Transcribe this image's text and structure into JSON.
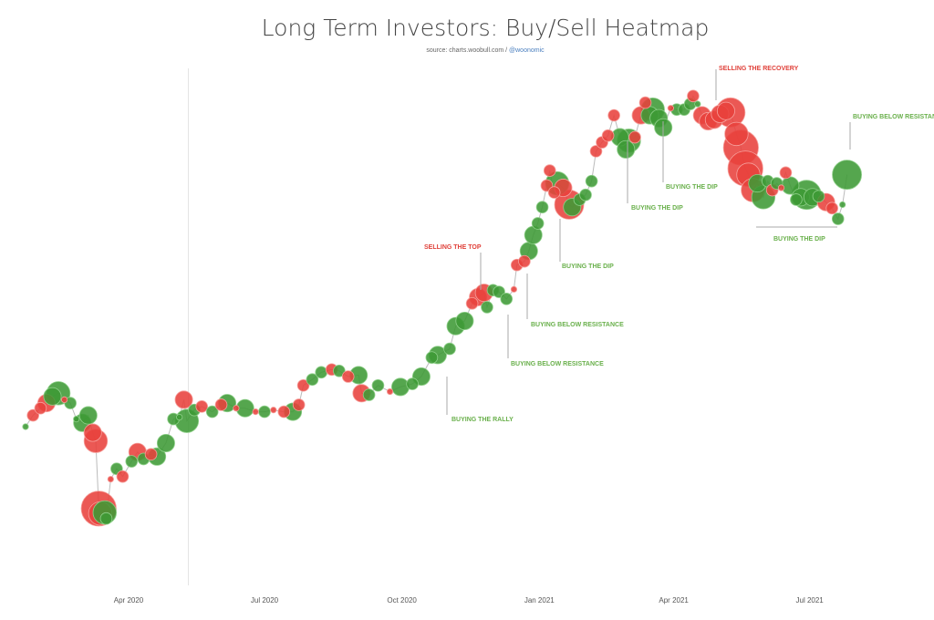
{
  "chart_data": {
    "type": "scatter",
    "title": "Long Term Investors: Buy/Sell Heatmap",
    "subtitle_source": "source: charts.woobull.com /",
    "subtitle_handle": "@woonomic",
    "xlabel": "",
    "ylabel": "",
    "y_axis_visible": false,
    "y_scale": "log",
    "x_ticks": [
      {
        "date": "2020-04-01",
        "label": "Apr 2020"
      },
      {
        "date": "2020-07-01",
        "label": "Jul 2020"
      },
      {
        "date": "2020-10-01",
        "label": "Oct 2020"
      },
      {
        "date": "2021-01-01",
        "label": "Jan 2021"
      },
      {
        "date": "2021-04-01",
        "label": "Apr 2021"
      },
      {
        "date": "2021-07-01",
        "label": "Jul 2021"
      }
    ],
    "xlim": [
      "2020-01-20",
      "2021-08-02"
    ],
    "legend": {
      "buy_color": "#3d9a35",
      "sell_color": "#e8413c"
    },
    "marker_line_date": "2020-05-11",
    "points_format": [
      "date",
      "approx_price_usd",
      "side",
      "bubble_size"
    ],
    "points": [
      [
        "2020-01-23",
        8400,
        "b",
        1
      ],
      [
        "2020-01-28",
        9000,
        "s",
        2
      ],
      [
        "2020-02-02",
        9400,
        "s",
        2
      ],
      [
        "2020-02-06",
        9700,
        "s",
        3
      ],
      [
        "2020-02-10",
        10100,
        "b",
        3
      ],
      [
        "2020-02-14",
        10300,
        "b",
        4
      ],
      [
        "2020-02-18",
        9900,
        "s",
        1
      ],
      [
        "2020-02-22",
        9700,
        "b",
        2
      ],
      [
        "2020-02-26",
        8800,
        "b",
        1
      ],
      [
        "2020-03-01",
        8600,
        "b",
        3
      ],
      [
        "2020-03-05",
        9000,
        "b",
        3
      ],
      [
        "2020-03-08",
        8100,
        "s",
        3
      ],
      [
        "2020-03-10",
        7700,
        "s",
        4
      ],
      [
        "2020-03-12",
        5100,
        "s",
        6
      ],
      [
        "2020-03-13",
        4950,
        "s",
        4
      ],
      [
        "2020-03-16",
        4980,
        "b",
        4
      ],
      [
        "2020-03-17",
        4800,
        "b",
        2
      ],
      [
        "2020-03-20",
        6100,
        "s",
        1
      ],
      [
        "2020-03-24",
        6500,
        "b",
        2
      ],
      [
        "2020-03-28",
        6200,
        "s",
        2
      ],
      [
        "2020-04-03",
        6800,
        "b",
        2
      ],
      [
        "2020-04-07",
        7200,
        "s",
        3
      ],
      [
        "2020-04-11",
        6900,
        "b",
        2
      ],
      [
        "2020-04-16",
        7100,
        "s",
        2
      ],
      [
        "2020-04-20",
        7000,
        "b",
        3
      ],
      [
        "2020-04-26",
        7600,
        "b",
        3
      ],
      [
        "2020-05-01",
        8800,
        "b",
        2
      ],
      [
        "2020-05-05",
        8900,
        "b",
        1
      ],
      [
        "2020-05-08",
        9900,
        "s",
        3
      ],
      [
        "2020-05-10",
        8700,
        "b",
        4
      ],
      [
        "2020-05-15",
        9300,
        "b",
        2
      ],
      [
        "2020-05-20",
        9500,
        "s",
        2
      ],
      [
        "2020-05-27",
        9200,
        "b",
        2
      ],
      [
        "2020-06-02",
        9600,
        "s",
        2
      ],
      [
        "2020-06-06",
        9700,
        "b",
        3
      ],
      [
        "2020-06-12",
        9400,
        "s",
        1
      ],
      [
        "2020-06-18",
        9400,
        "b",
        3
      ],
      [
        "2020-06-25",
        9200,
        "s",
        1
      ],
      [
        "2020-07-01",
        9200,
        "b",
        2
      ],
      [
        "2020-07-07",
        9300,
        "s",
        1
      ],
      [
        "2020-07-14",
        9200,
        "s",
        2
      ],
      [
        "2020-07-20",
        9200,
        "b",
        3
      ],
      [
        "2020-07-24",
        9600,
        "s",
        2
      ],
      [
        "2020-07-27",
        10800,
        "s",
        2
      ],
      [
        "2020-08-02",
        11200,
        "b",
        2
      ],
      [
        "2020-08-08",
        11700,
        "b",
        2
      ],
      [
        "2020-08-15",
        11900,
        "s",
        2
      ],
      [
        "2020-08-20",
        11800,
        "b",
        2
      ],
      [
        "2020-08-26",
        11400,
        "s",
        2
      ],
      [
        "2020-09-02",
        11500,
        "b",
        3
      ],
      [
        "2020-09-04",
        10300,
        "s",
        3
      ],
      [
        "2020-09-09",
        10200,
        "b",
        2
      ],
      [
        "2020-09-15",
        10800,
        "b",
        2
      ],
      [
        "2020-09-23",
        10400,
        "s",
        1
      ],
      [
        "2020-09-30",
        10700,
        "b",
        3
      ],
      [
        "2020-10-08",
        10900,
        "b",
        2
      ],
      [
        "2020-10-14",
        11400,
        "b",
        3
      ],
      [
        "2020-10-21",
        12800,
        "b",
        2
      ],
      [
        "2020-10-25",
        13000,
        "b",
        3
      ],
      [
        "2020-11-02",
        13500,
        "b",
        2
      ],
      [
        "2020-11-06",
        15500,
        "b",
        3
      ],
      [
        "2020-11-12",
        16000,
        "b",
        3
      ],
      [
        "2020-11-17",
        17800,
        "s",
        2
      ],
      [
        "2020-11-21",
        18500,
        "s",
        3
      ],
      [
        "2020-11-25",
        19000,
        "s",
        3
      ],
      [
        "2020-11-27",
        17400,
        "b",
        2
      ],
      [
        "2020-12-01",
        19300,
        "b",
        2
      ],
      [
        "2020-12-05",
        19100,
        "b",
        2
      ],
      [
        "2020-12-10",
        18300,
        "b",
        2
      ],
      [
        "2020-12-15",
        19400,
        "s",
        1
      ],
      [
        "2020-12-17",
        22500,
        "s",
        2
      ],
      [
        "2020-12-22",
        23000,
        "s",
        2
      ],
      [
        "2020-12-25",
        24500,
        "b",
        3
      ],
      [
        "2020-12-28",
        27000,
        "b",
        3
      ],
      [
        "2020-12-31",
        29000,
        "b",
        2
      ],
      [
        "2021-01-03",
        32000,
        "b",
        2
      ],
      [
        "2021-01-06",
        36500,
        "s",
        2
      ],
      [
        "2021-01-08",
        40000,
        "s",
        2
      ],
      [
        "2021-01-11",
        35000,
        "s",
        2
      ],
      [
        "2021-01-13",
        37000,
        "b",
        4
      ],
      [
        "2021-01-17",
        36000,
        "s",
        3
      ],
      [
        "2021-01-21",
        32500,
        "s",
        5
      ],
      [
        "2021-01-23",
        32000,
        "b",
        3
      ],
      [
        "2021-01-28",
        33500,
        "b",
        2
      ],
      [
        "2021-02-01",
        34500,
        "b",
        2
      ],
      [
        "2021-02-05",
        37500,
        "b",
        2
      ],
      [
        "2021-02-08",
        45000,
        "s",
        2
      ],
      [
        "2021-02-12",
        47500,
        "s",
        2
      ],
      [
        "2021-02-16",
        49500,
        "s",
        2
      ],
      [
        "2021-02-20",
        56000,
        "s",
        2
      ],
      [
        "2021-02-24",
        49000,
        "b",
        3
      ],
      [
        "2021-02-28",
        45500,
        "b",
        3
      ],
      [
        "2021-03-02",
        48000,
        "b",
        4
      ],
      [
        "2021-03-06",
        49000,
        "s",
        2
      ],
      [
        "2021-03-10",
        56000,
        "s",
        3
      ],
      [
        "2021-03-13",
        60500,
        "s",
        2
      ],
      [
        "2021-03-16",
        56000,
        "b",
        3
      ],
      [
        "2021-03-18",
        58000,
        "b",
        4
      ],
      [
        "2021-03-22",
        55000,
        "b",
        3
      ],
      [
        "2021-03-25",
        52000,
        "b",
        3
      ],
      [
        "2021-03-30",
        58500,
        "s",
        1
      ],
      [
        "2021-04-03",
        58000,
        "b",
        2
      ],
      [
        "2021-04-08",
        58000,
        "b",
        2
      ],
      [
        "2021-04-12",
        60000,
        "b",
        2
      ],
      [
        "2021-04-14",
        63000,
        "s",
        2
      ],
      [
        "2021-04-17",
        60000,
        "b",
        1
      ],
      [
        "2021-04-20",
        56000,
        "s",
        3
      ],
      [
        "2021-04-24",
        54000,
        "s",
        3
      ],
      [
        "2021-04-28",
        54500,
        "s",
        3
      ],
      [
        "2021-05-02",
        56500,
        "s",
        3
      ],
      [
        "2021-05-06",
        57500,
        "s",
        3
      ],
      [
        "2021-05-09",
        57000,
        "s",
        5
      ],
      [
        "2021-05-13",
        50000,
        "s",
        4
      ],
      [
        "2021-05-16",
        46000,
        "s",
        6
      ],
      [
        "2021-05-19",
        40500,
        "s",
        6
      ],
      [
        "2021-05-21",
        39000,
        "s",
        4
      ],
      [
        "2021-05-24",
        35500,
        "s",
        4
      ],
      [
        "2021-05-27",
        37000,
        "b",
        3
      ],
      [
        "2021-05-31",
        34000,
        "b",
        4
      ],
      [
        "2021-06-03",
        37500,
        "b",
        2
      ],
      [
        "2021-06-06",
        35500,
        "s",
        2
      ],
      [
        "2021-06-09",
        37000,
        "b",
        2
      ],
      [
        "2021-06-12",
        36000,
        "s",
        1
      ],
      [
        "2021-06-15",
        39500,
        "s",
        2
      ],
      [
        "2021-06-18",
        36500,
        "b",
        3
      ],
      [
        "2021-06-22",
        33500,
        "b",
        2
      ],
      [
        "2021-06-25",
        34000,
        "b",
        3
      ],
      [
        "2021-06-29",
        34500,
        "b",
        5
      ],
      [
        "2021-07-03",
        34000,
        "b",
        3
      ],
      [
        "2021-07-07",
        34200,
        "b",
        2
      ],
      [
        "2021-07-12",
        33000,
        "s",
        3
      ],
      [
        "2021-07-16",
        31800,
        "s",
        2
      ],
      [
        "2021-07-20",
        29800,
        "b",
        2
      ],
      [
        "2021-07-23",
        32500,
        "b",
        1
      ],
      [
        "2021-07-26",
        39000,
        "b",
        5
      ]
    ],
    "annotations": [
      {
        "text": "BUYING THE RALLY",
        "side": "buy",
        "date": "2020-10-25"
      },
      {
        "text": "SELLING THE TOP",
        "side": "sell",
        "date": "2020-11-25"
      },
      {
        "text": "BUYING BELOW RESISTANCE",
        "side": "buy",
        "date": "2020-12-10"
      },
      {
        "text": "BUYING BELOW RESISTANCE",
        "side": "buy",
        "date": "2020-12-22"
      },
      {
        "text": "BUYING THE DIP",
        "side": "buy",
        "date": "2021-01-13"
      },
      {
        "text": "BUYING THE DIP",
        "side": "buy",
        "date": "2021-02-28"
      },
      {
        "text": "BUYING THE DIP",
        "side": "buy",
        "date": "2021-03-25"
      },
      {
        "text": "SELLING THE RECOVERY",
        "side": "sell",
        "date": "2021-04-28"
      },
      {
        "text": "BUYING BELOW RESISTANCE",
        "side": "buy",
        "date": "2021-07-26"
      },
      {
        "text": "BUYING THE DIP",
        "side": "buy",
        "date": "2021-06-01 to 2021-07-20"
      }
    ]
  }
}
